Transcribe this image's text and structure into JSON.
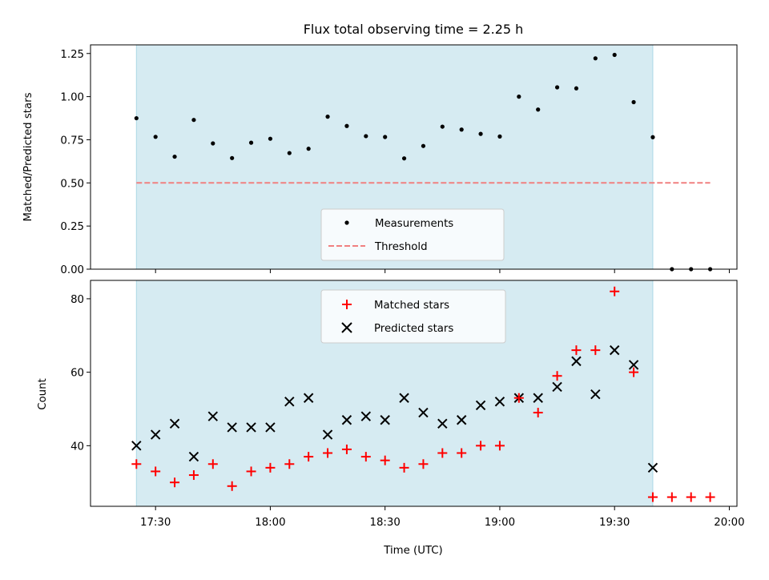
{
  "chart_data": [
    {
      "type": "scatter",
      "title": "Flux total observing time = 2.25 h",
      "xlabel": "",
      "ylabel": "Matched/Predicted stars",
      "ylim": [
        0,
        1.3
      ],
      "yticks": [
        "0.00",
        "0.25",
        "0.50",
        "0.75",
        "1.00",
        "1.25"
      ],
      "shaded_region": {
        "x_start": "17:25",
        "x_end": "19:40"
      },
      "legend_position": "lower center",
      "series": [
        {
          "name": "Measurements",
          "marker": "dot",
          "color": "#000000",
          "x": [
            "17:25",
            "17:30",
            "17:35",
            "17:40",
            "17:45",
            "17:50",
            "17:55",
            "18:00",
            "18:05",
            "18:10",
            "18:15",
            "18:20",
            "18:25",
            "18:30",
            "18:35",
            "18:40",
            "18:45",
            "18:50",
            "18:55",
            "19:00",
            "19:05",
            "19:10",
            "19:15",
            "19:20",
            "19:25",
            "19:30",
            "19:35",
            "19:40",
            "19:45",
            "19:50",
            "19:55"
          ],
          "y": [
            0.875,
            0.767,
            0.652,
            0.865,
            0.729,
            0.644,
            0.733,
            0.756,
            0.673,
            0.698,
            0.884,
            0.83,
            0.771,
            0.766,
            0.642,
            0.714,
            0.826,
            0.809,
            0.784,
            0.769,
            1.0,
            0.925,
            1.054,
            1.048,
            1.222,
            1.242,
            0.968,
            0.765,
            0,
            0,
            0
          ]
        },
        {
          "name": "Threshold",
          "marker": "dashed-line",
          "color": "#f08080",
          "x": [
            "17:25",
            "19:55"
          ],
          "y": [
            0.5,
            0.5
          ]
        }
      ]
    },
    {
      "type": "scatter",
      "title": "",
      "xlabel": "Time (UTC)",
      "ylabel": "Count",
      "ylim": [
        23.5,
        85
      ],
      "yticks": [
        "40",
        "60",
        "80"
      ],
      "xticks": [
        "17:30",
        "18:00",
        "18:30",
        "19:00",
        "19:30",
        "20:00"
      ],
      "shaded_region": {
        "x_start": "17:25",
        "x_end": "19:40"
      },
      "legend_position": "upper center",
      "series": [
        {
          "name": "Matched stars",
          "marker": "plus",
          "color": "#ff0000",
          "x": [
            "17:25",
            "17:30",
            "17:35",
            "17:40",
            "17:45",
            "17:50",
            "17:55",
            "18:00",
            "18:05",
            "18:10",
            "18:15",
            "18:20",
            "18:25",
            "18:30",
            "18:35",
            "18:40",
            "18:45",
            "18:50",
            "18:55",
            "19:00",
            "19:05",
            "19:10",
            "19:15",
            "19:20",
            "19:25",
            "19:30",
            "19:35",
            "19:40",
            "19:45",
            "19:50",
            "19:55"
          ],
          "y": [
            35,
            33,
            30,
            32,
            35,
            29,
            33,
            34,
            35,
            37,
            38,
            39,
            37,
            36,
            34,
            35,
            38,
            38,
            40,
            40,
            53,
            49,
            59,
            66,
            66,
            82,
            60,
            26,
            26,
            26,
            26
          ]
        },
        {
          "name": "Predicted stars",
          "marker": "x",
          "color": "#000000",
          "x": [
            "17:25",
            "17:30",
            "17:35",
            "17:40",
            "17:45",
            "17:50",
            "17:55",
            "18:00",
            "18:05",
            "18:10",
            "18:15",
            "18:20",
            "18:25",
            "18:30",
            "18:35",
            "18:40",
            "18:45",
            "18:50",
            "18:55",
            "19:00",
            "19:05",
            "19:10",
            "19:15",
            "19:20",
            "19:25",
            "19:30",
            "19:35",
            "19:40"
          ],
          "y": [
            40,
            43,
            46,
            37,
            48,
            45,
            45,
            45,
            52,
            53,
            43,
            47,
            48,
            47,
            53,
            49,
            46,
            47,
            51,
            52,
            53,
            53,
            56,
            63,
            54,
            66,
            62,
            34
          ]
        }
      ]
    }
  ]
}
